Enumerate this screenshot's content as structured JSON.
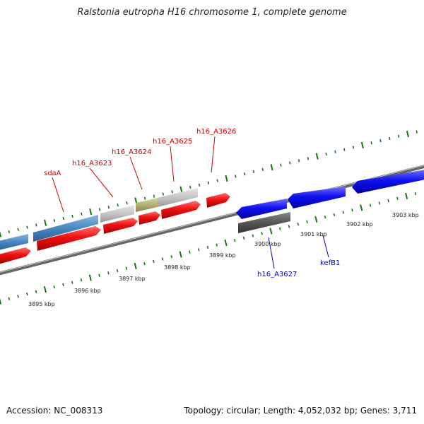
{
  "header": {
    "title": "Ralstonia eutropha H16 chromosome 1, complete genome"
  },
  "footer": {
    "accession": "Accession: NC_008313",
    "stats": "Topology: circular; Length: 4,052,032 bp; Genes: 3,711"
  },
  "colors": {
    "forward_cds": "#ee1111",
    "reverse_cds": "#1111ee",
    "rna": "#4a86c0",
    "pseudo": "#c0c0c0",
    "olive": "#b3b070",
    "dark": "#555555",
    "backbone": "#888888",
    "tick": "#117711",
    "label_red": "#cc0000",
    "label_blue": "#0000bb"
  },
  "scale_labels": [
    "3895 kbp",
    "3896 kbp",
    "3897 kbp",
    "3898 kbp",
    "3899 kbp",
    "3900 kbp",
    "3901 kbp",
    "3902 kbp",
    "3903 kbp"
  ],
  "gene_labels": [
    {
      "text": "sdaA",
      "color": "red"
    },
    {
      "text": "h16_A3623",
      "color": "red"
    },
    {
      "text": "h16_A3624",
      "color": "red"
    },
    {
      "text": "h16_A3625",
      "color": "red"
    },
    {
      "text": "h16_A3626",
      "color": "red"
    },
    {
      "text": "h16_A3627",
      "color": "blue"
    },
    {
      "text": "kefB1",
      "color": "blue"
    }
  ]
}
